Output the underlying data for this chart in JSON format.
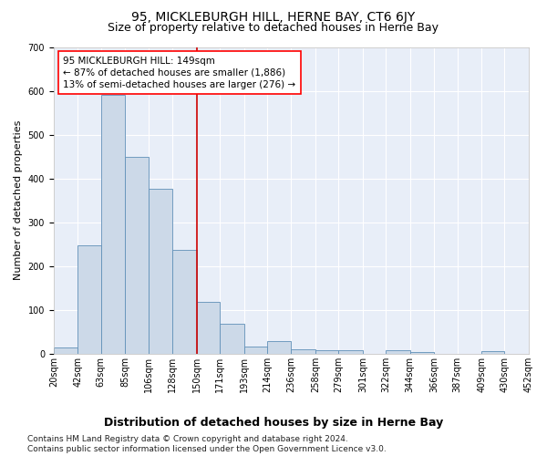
{
  "title": "95, MICKLEBURGH HILL, HERNE BAY, CT6 6JY",
  "subtitle": "Size of property relative to detached houses in Herne Bay",
  "xlabel": "Distribution of detached houses by size in Herne Bay",
  "ylabel": "Number of detached properties",
  "footnote1": "Contains HM Land Registry data © Crown copyright and database right 2024.",
  "footnote2": "Contains public sector information licensed under the Open Government Licence v3.0.",
  "annotation_line1": "95 MICKLEBURGH HILL: 149sqm",
  "annotation_line2": "← 87% of detached houses are smaller (1,886)",
  "annotation_line3": "13% of semi-detached houses are larger (276) →",
  "bar_color": "#ccd9e8",
  "bar_edge_color": "#6090b8",
  "vline_color": "#cc0000",
  "vline_x": 150,
  "bin_edges": [
    20,
    42,
    63,
    85,
    106,
    128,
    150,
    171,
    193,
    214,
    236,
    258,
    279,
    301,
    322,
    344,
    366,
    387,
    409,
    430,
    452
  ],
  "bar_heights": [
    15,
    248,
    590,
    449,
    376,
    236,
    118,
    68,
    17,
    28,
    11,
    9,
    8,
    0,
    9,
    4,
    0,
    0,
    5,
    0
  ],
  "ylim": [
    0,
    700
  ],
  "yticks": [
    0,
    100,
    200,
    300,
    400,
    500,
    600,
    700
  ],
  "bg_color": "#e8eef8",
  "grid_color": "#ffffff",
  "fig_bg_color": "#ffffff",
  "title_fontsize": 10,
  "subtitle_fontsize": 9,
  "xlabel_fontsize": 9,
  "ylabel_fontsize": 8,
  "tick_fontsize": 7,
  "footnote_fontsize": 6.5,
  "annotation_fontsize": 7.5
}
